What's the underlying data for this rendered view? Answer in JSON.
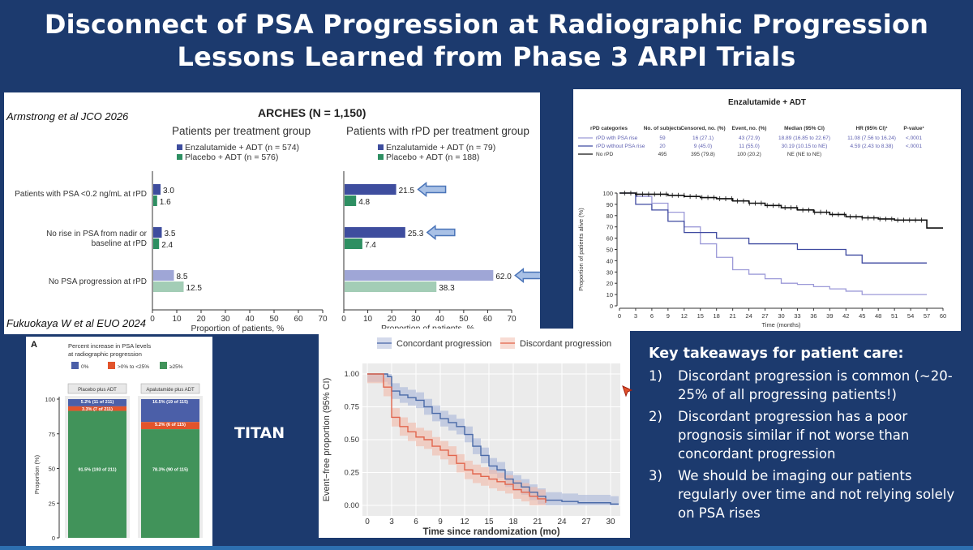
{
  "slide": {
    "title_line1": "Disconnect of PSA Progression at Radiographic Progression",
    "title_line2": "Lessons Learned from Phase 3 ARPI Trials",
    "titan_label": "TITAN"
  },
  "arches": {
    "citation_top": "Armstrong et al JCO 2026",
    "citation_bottom": "Fukuokaya W et al EUO 2024",
    "title": "ARCHES (N = 1,150)",
    "left_subtitle": "Patients per treatment group",
    "right_subtitle": "Patients with rPD per treatment group",
    "left_legend": [
      "Enzalutamide + ADT (n = 574)",
      "Placebo + ADT (n = 576)"
    ],
    "right_legend": [
      "Enzalutamide + ADT (n = 79)",
      "Placebo + ADT (n = 188)"
    ],
    "row_labels": [
      "Patients with PSA <0.2 ng/mL at rPD",
      "No rise in PSA from nadir or",
      "baseline at rPD",
      "No PSA progression at rPD"
    ],
    "x_ticks": [
      "0",
      "10",
      "20",
      "30",
      "40",
      "50",
      "60",
      "70"
    ],
    "xlabel": "Proportion of patients, %",
    "colors": {
      "enz_dark": "#3e4d9e",
      "enz_light": "#9fa6d6",
      "pla_dark": "#2e8f62",
      "pla_light": "#a3cdb6",
      "arrow": "#4a74b8"
    }
  },
  "enza_km": {
    "title": "Enzalutamide + ADT",
    "headers": [
      "rPD categories",
      "No. of subjects",
      "Censored, no. (%)",
      "Event, no. (%)",
      "Median (95% CI)",
      "HR (95% CI)¹",
      "P-value¹"
    ],
    "rows": [
      [
        "rPD with PSA rise",
        "59",
        "16 (27.1)",
        "43 (72.9)",
        "18.89 (16.85 to 22.67)",
        "11.08 (7.56 to 16.24)",
        "<.0001"
      ],
      [
        "rPD without PSA rise",
        "20",
        "9 (45.0)",
        "11 (55.0)",
        "30.19 (10.15 to NE)",
        "4.59 (2.43 to 8.38)",
        "<.0001"
      ],
      [
        "No rPD",
        "495",
        "395 (79.8)",
        "100 (20.2)",
        "NE (NE to NE)",
        "",
        ""
      ]
    ],
    "ylabel": "Proportion of patients alive (%)",
    "xlabel": "Time (months)",
    "y_ticks": [
      "0",
      "10",
      "20",
      "30",
      "40",
      "50",
      "60",
      "70",
      "80",
      "90",
      "100"
    ],
    "x_ticks": [
      "0",
      "3",
      "6",
      "9",
      "12",
      "15",
      "18",
      "21",
      "24",
      "27",
      "30",
      "33",
      "36",
      "39",
      "42",
      "45",
      "48",
      "51",
      "54",
      "57",
      "60"
    ],
    "colors": {
      "psa_rise": "#9c9ad8",
      "no_psa_rise": "#3f4aa0",
      "no_rpd": "#111111"
    }
  },
  "titan_bar": {
    "panel_letter": "A",
    "legend_title_1": "Percent increase in PSA levels",
    "legend_title_2": "at radiographic progression",
    "legend_items": [
      "0%",
      ">0% to <25%",
      "≥25%"
    ],
    "legend_colors": [
      "#4b5fa8",
      "#e2542c",
      "#41935a"
    ],
    "ylabel": "Proportion (%)",
    "y_ticks": [
      "0",
      "25",
      "50",
      "75",
      "100"
    ],
    "columns": [
      {
        "header": "Placebo plus ADT",
        "labels": [
          "5.2% (11 of 211)",
          "3.3% (7 of 211)",
          "91.5% (193 of 211)"
        ],
        "values": [
          5.2,
          3.3,
          91.5
        ]
      },
      {
        "header": "Apalutamide plus ADT",
        "labels": [
          "16.5% (19 of 115)",
          "5.2% (6 of 115)",
          "78.3% (90 of 115)"
        ],
        "values": [
          16.5,
          5.2,
          78.3
        ]
      }
    ]
  },
  "titan_km": {
    "legend": [
      "Concordant progression",
      "Discordant progression"
    ],
    "ylabel": "Event−free proportion (95% CI)",
    "xlabel": "Time since randomization (mo)",
    "y_ticks": [
      "0.00",
      "0.25",
      "0.50",
      "0.75",
      "1.00"
    ],
    "x_ticks": [
      "0",
      "3",
      "6",
      "9",
      "12",
      "15",
      "18",
      "21",
      "24",
      "27",
      "30"
    ],
    "colors": {
      "concordant": "#4a6aa8",
      "concordant_band": "#a9b6d8",
      "discordant": "#e2664e",
      "discordant_band": "#f2b9a9"
    }
  },
  "takeaways": {
    "title": "Key takeaways for patient care:",
    "items": [
      {
        "num": "1)",
        "text": "Discordant progression is common (~20-25% of all progressing patients!)"
      },
      {
        "num": "2)",
        "text": "Discordant progression has a poor prognosis similar if not worse than concordant progression"
      },
      {
        "num": "3)",
        "text": "We should be imaging our patients regularly over time and not relying solely on PSA rises"
      }
    ]
  },
  "chart_data": [
    {
      "type": "bar",
      "title": "Patients per treatment group",
      "categories": [
        "Patients with PSA <0.2 ng/mL at rPD",
        "No rise in PSA from nadir or baseline at rPD",
        "No PSA progression at rPD"
      ],
      "series": [
        {
          "name": "Enzalutamide + ADT (n = 574)",
          "values": [
            3.0,
            3.5,
            8.5
          ]
        },
        {
          "name": "Placebo + ADT (n = 576)",
          "values": [
            1.6,
            2.4,
            12.5
          ]
        }
      ],
      "xlabel": "Proportion of patients, %",
      "xlim": [
        0,
        70
      ]
    },
    {
      "type": "bar",
      "title": "Patients with rPD per treatment group",
      "categories": [
        "Patients with PSA <0.2 ng/mL at rPD",
        "No rise in PSA from nadir or baseline at rPD",
        "No PSA progression at rPD"
      ],
      "series": [
        {
          "name": "Enzalutamide + ADT (n = 79)",
          "values": [
            21.5,
            25.3,
            62.0
          ]
        },
        {
          "name": "Placebo + ADT (n = 188)",
          "values": [
            4.8,
            7.4,
            38.3
          ]
        }
      ],
      "xlabel": "Proportion of patients, %",
      "xlim": [
        0,
        70
      ]
    },
    {
      "type": "line",
      "title": "Enzalutamide + ADT",
      "xlabel": "Time (months)",
      "ylabel": "Proportion of patients alive (%)",
      "xlim": [
        0,
        60
      ],
      "ylim": [
        0,
        100
      ],
      "series": [
        {
          "name": "rPD with PSA rise",
          "x": [
            0,
            3,
            6,
            9,
            12,
            15,
            18,
            21,
            24,
            27,
            30,
            33,
            36,
            39,
            42,
            45,
            48,
            51,
            54,
            57
          ],
          "y": [
            100,
            97,
            91,
            83,
            70,
            55,
            43,
            32,
            28,
            24,
            20,
            19,
            17,
            15,
            13,
            10,
            10,
            10,
            10,
            10
          ]
        },
        {
          "name": "rPD without PSA rise",
          "x": [
            0,
            3,
            6,
            9,
            12,
            15,
            18,
            21,
            24,
            27,
            30,
            33,
            36,
            39,
            42,
            45,
            48,
            51,
            54,
            57
          ],
          "y": [
            100,
            90,
            85,
            75,
            65,
            65,
            60,
            60,
            55,
            55,
            55,
            50,
            50,
            50,
            45,
            38,
            38,
            38,
            38,
            38
          ]
        },
        {
          "name": "No rPD",
          "x": [
            0,
            3,
            6,
            9,
            12,
            15,
            18,
            21,
            24,
            27,
            30,
            33,
            36,
            39,
            42,
            45,
            48,
            51,
            54,
            57,
            60
          ],
          "y": [
            100,
            99,
            99,
            98,
            97,
            96,
            95,
            93,
            91,
            89,
            87,
            85,
            83,
            81,
            79,
            78,
            77,
            76,
            76,
            69,
            69
          ]
        }
      ]
    },
    {
      "type": "bar",
      "title": "Percent increase in PSA levels at radiographic progression",
      "categories": [
        "Placebo plus ADT",
        "Apalutamide plus ADT"
      ],
      "series": [
        {
          "name": "0%",
          "values": [
            5.2,
            16.5
          ]
        },
        {
          "name": ">0% to <25%",
          "values": [
            3.3,
            5.2
          ]
        },
        {
          "name": "≥25%",
          "values": [
            91.5,
            78.3
          ]
        }
      ],
      "ylabel": "Proportion (%)",
      "ylim": [
        0,
        100
      ]
    },
    {
      "type": "line",
      "xlabel": "Time since randomization (mo)",
      "ylabel": "Event−free proportion (95% CI)",
      "xlim": [
        0,
        31
      ],
      "ylim": [
        0,
        1
      ],
      "series": [
        {
          "name": "Concordant progression",
          "x": [
            0,
            1.5,
            2.5,
            3,
            4,
            5,
            6,
            7,
            8,
            9,
            10,
            11,
            12,
            13,
            14,
            15,
            16,
            17,
            18,
            19,
            20,
            21,
            22,
            24,
            26,
            28,
            30,
            31
          ],
          "y": [
            1.0,
            1.0,
            0.98,
            0.87,
            0.84,
            0.82,
            0.8,
            0.75,
            0.7,
            0.66,
            0.63,
            0.6,
            0.54,
            0.45,
            0.38,
            0.3,
            0.27,
            0.2,
            0.17,
            0.14,
            0.1,
            0.07,
            0.04,
            0.03,
            0.02,
            0.02,
            0.01,
            0.01
          ]
        },
        {
          "name": "Discordant progression",
          "x": [
            0,
            1.5,
            2,
            3,
            4,
            5,
            6,
            7,
            8,
            9,
            10,
            11,
            12,
            13,
            14,
            15,
            16,
            17,
            18,
            19,
            20,
            21,
            22
          ],
          "y": [
            1.0,
            1.0,
            0.9,
            0.67,
            0.6,
            0.56,
            0.52,
            0.5,
            0.45,
            0.42,
            0.38,
            0.32,
            0.27,
            0.24,
            0.22,
            0.2,
            0.18,
            0.16,
            0.12,
            0.1,
            0.07,
            0.05,
            0.02
          ]
        }
      ]
    }
  ]
}
